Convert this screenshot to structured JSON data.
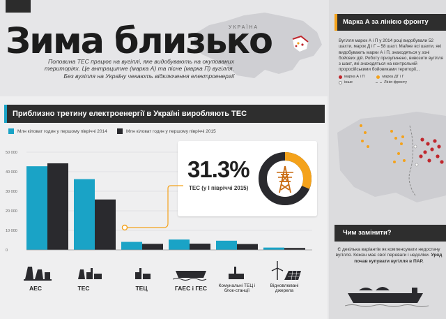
{
  "page": {
    "title": "Зима близько",
    "lead": "Половина ТЕС працює на вугіллі, яке видобувають на окупованих територіях. Це антрацитне (марка А) та пісне (марка П) вугілля. Без вугілля на Україну чекають відключення електроенергії",
    "country_label": "УКРАЇНА"
  },
  "colors": {
    "series_2014": "#1aa3c6",
    "series_2015": "#2a2a2e",
    "accent_orange": "#f4a21b",
    "marker_red": "#c0272d"
  },
  "chart_section": {
    "title": "Приблизно третину електроенергії в Україні виробляють ТЕС",
    "legend_2014": "Млн кіловат годин у першому півріччі 2014",
    "legend_2015": "Млн кіловат годин у першому півріччі 2015"
  },
  "chart_data": {
    "type": "bar",
    "categories": [
      "АЕС",
      "ТЕС",
      "ТЕЦ",
      "ГАЕС і ГЕС",
      "Комунальні ТЕЦ і блок-станції",
      "Відновлювані джерела"
    ],
    "series": [
      {
        "name": "Млн кіловат годин у першому півріччі 2014",
        "values": [
          42800,
          36200,
          4100,
          5300,
          4700,
          1200
        ]
      },
      {
        "name": "Млн кіловат годин у першому півріччі 2015",
        "values": [
          44300,
          25800,
          3100,
          3200,
          3000,
          1000
        ]
      }
    ],
    "y_ticks": [
      "50 000",
      "40 000",
      "30 000",
      "20 000",
      "10 000",
      "0"
    ],
    "ylim": [
      0,
      50000
    ],
    "grid": true
  },
  "callout": {
    "percent": "31.3%",
    "label": "ТЕС (у І півріччі 2015)",
    "share": 0.313
  },
  "front_section": {
    "title": "Марка А за лінією фронту",
    "text": "Вугілля марок А і П у 2014 році видобували 52 шахти, марок Д і Г – 58 шахт. Майже всі шахти, які видобувають марки А і П, знаходяться у зоні бойових дій. Роботу призупинено, вивозити вугілля з шахт, які знаходяться на контрольній проросійськими бойовиками території...",
    "legend": {
      "a_p": "марка А і П",
      "d_g": "марка ДГ і Г",
      "other": "інше",
      "front": "Лінія фронту"
    }
  },
  "replace_section": {
    "title": "Чим замінити?",
    "text_plain": "Є декілька варіантів як компенсувати недостачу вугілля. Кожен має свої переваги і недоліки.",
    "text_bold": "Уряд почав купувати вугілля в ПАР."
  }
}
